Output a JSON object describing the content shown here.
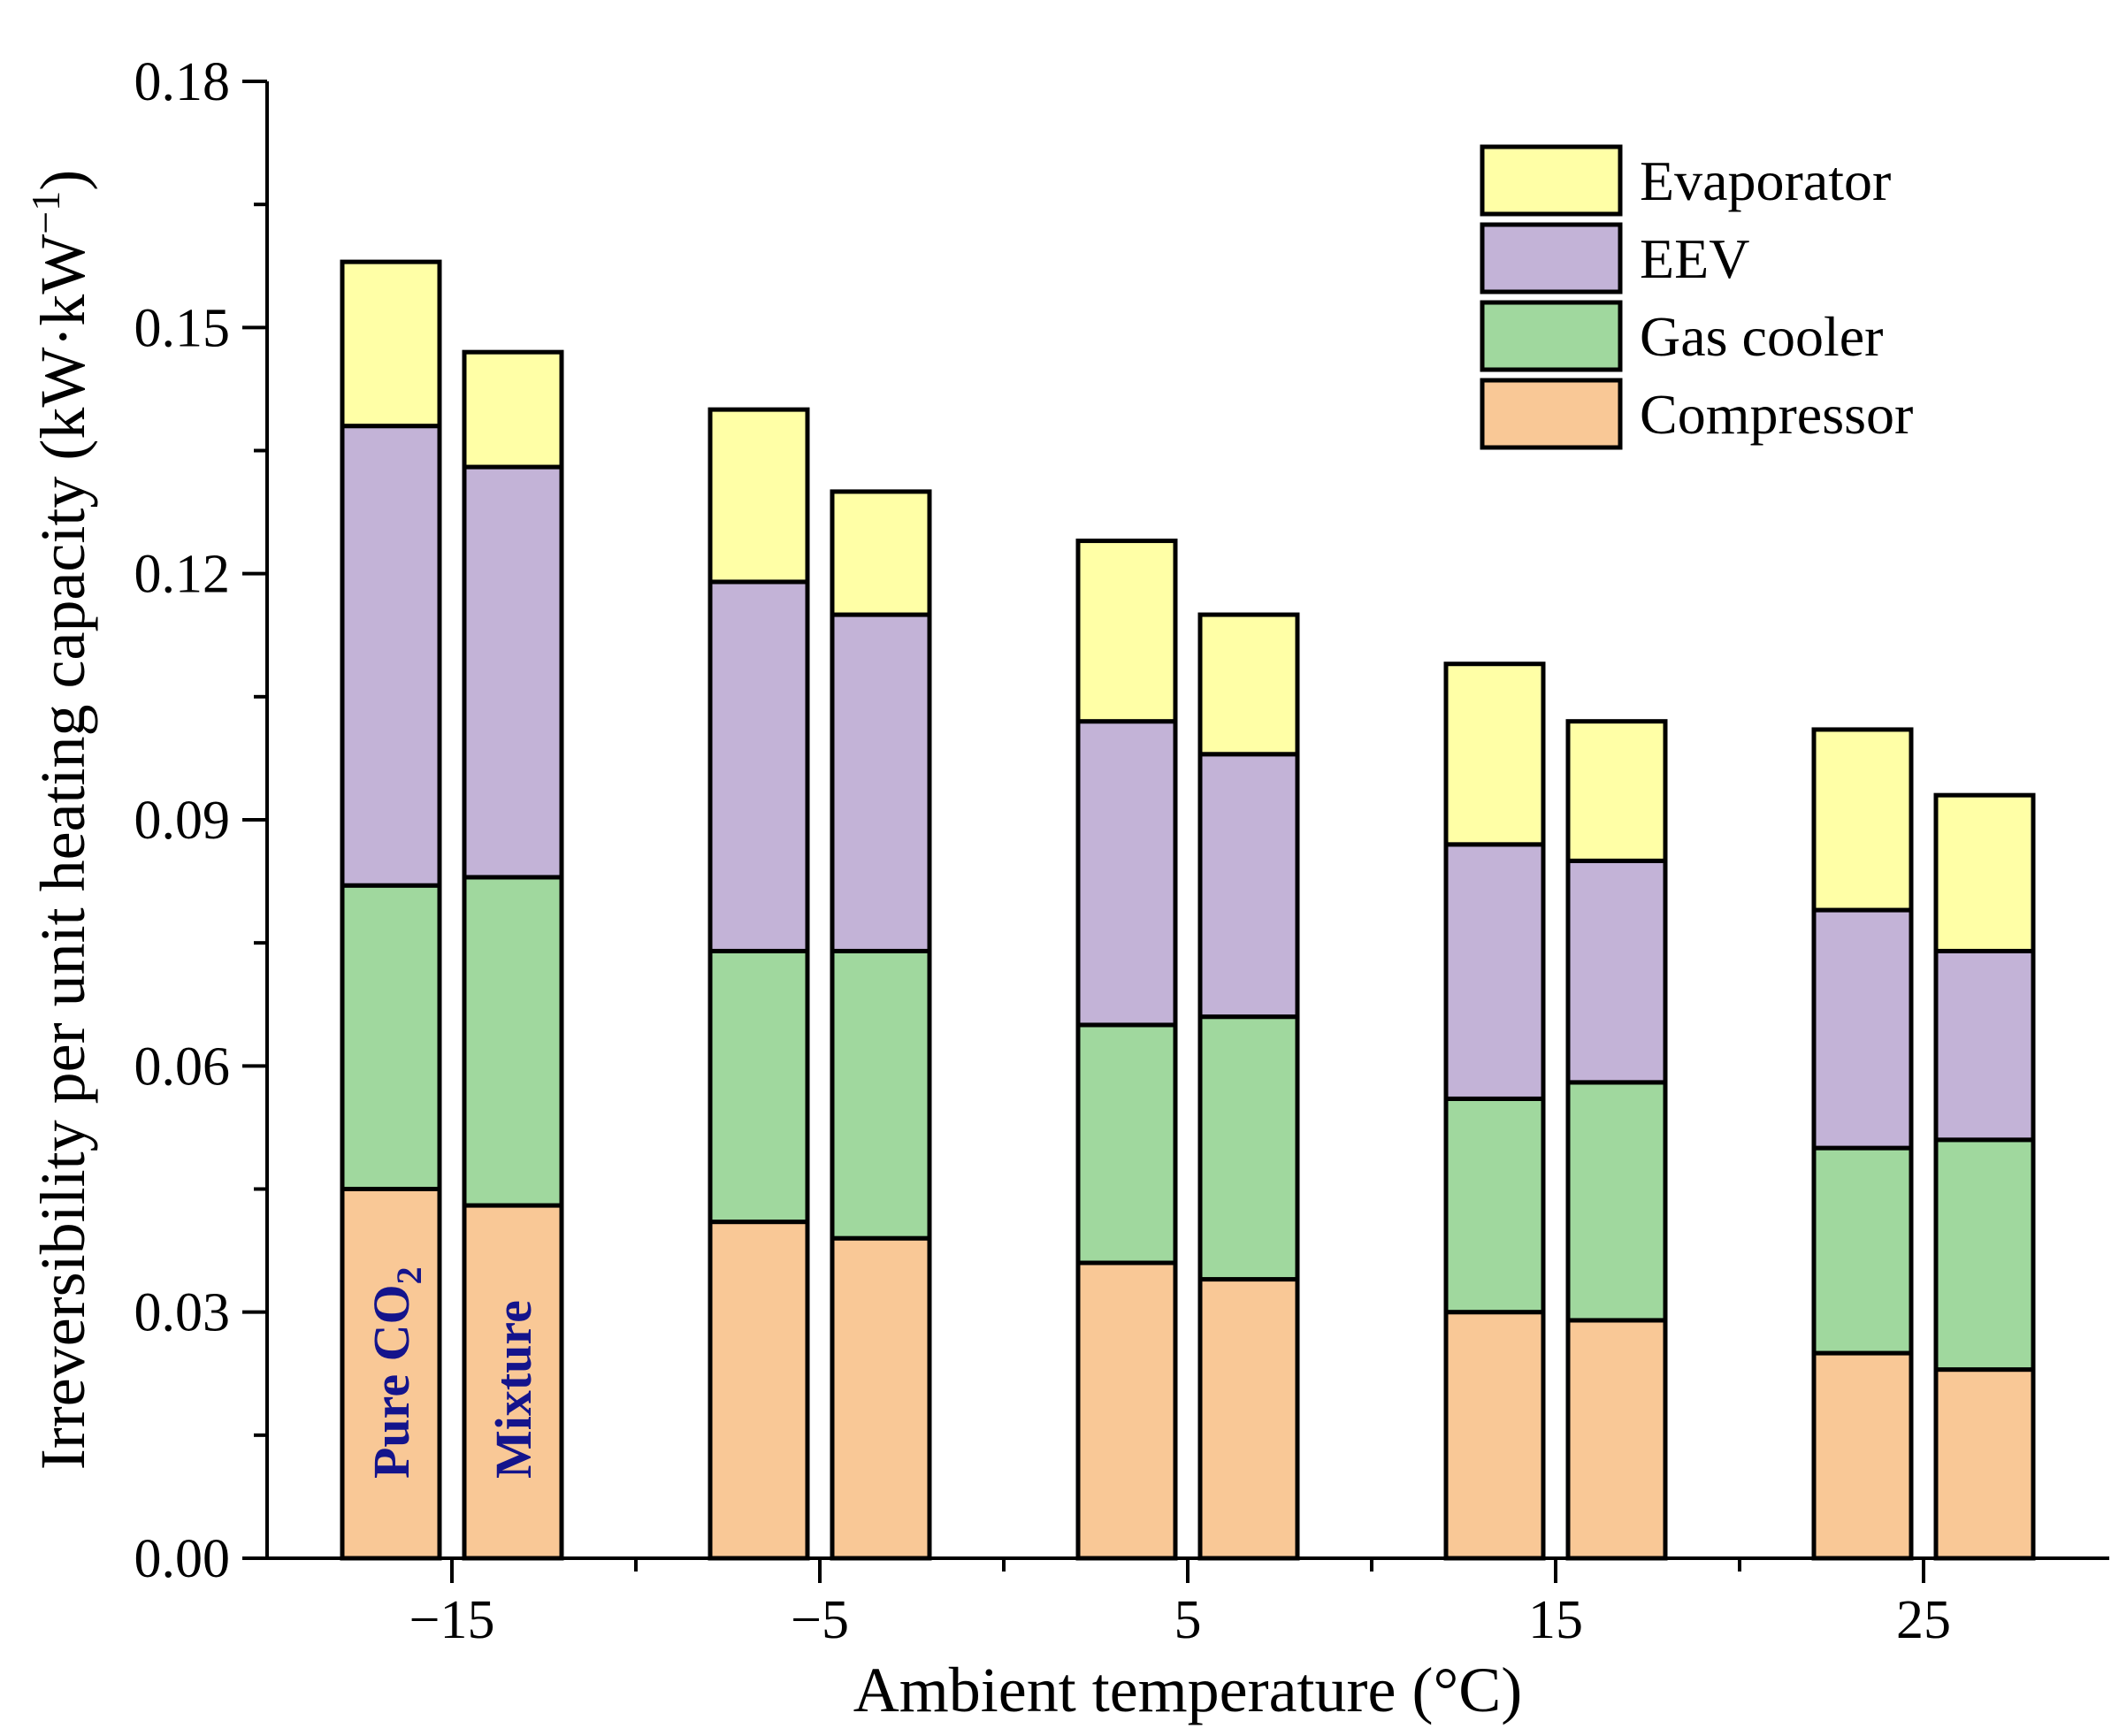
{
  "chart_data": {
    "type": "bar",
    "stacked": true,
    "xlabel": "Ambient temperature (°C)",
    "ylabel": "Irreversibility per unit heating capacity (kW·kW",
    "ylabel_superscript": "−1",
    "ylabel_close": ")",
    "ylim": [
      0,
      0.18
    ],
    "yticks": [
      "0.00",
      "0.03",
      "0.06",
      "0.09",
      "0.12",
      "0.15",
      "0.18"
    ],
    "categories": [
      "−15",
      "−5",
      "5",
      "15",
      "25"
    ],
    "bars_per_category": [
      "Pure CO2",
      "Mixture"
    ],
    "bar_annotations": [
      {
        "text": "Pure CO",
        "subscript": "2"
      },
      {
        "text": "Mixture",
        "subscript": ""
      }
    ],
    "series": [
      {
        "name": "Compressor",
        "color": "#f9c896",
        "values": [
          [
            0.045,
            0.043
          ],
          [
            0.041,
            0.039
          ],
          [
            0.036,
            0.034
          ],
          [
            0.03,
            0.029
          ],
          [
            0.025,
            0.023
          ]
        ]
      },
      {
        "name": "Gas cooler",
        "color": "#a0d89e",
        "values": [
          [
            0.037,
            0.04
          ],
          [
            0.033,
            0.035
          ],
          [
            0.029,
            0.032
          ],
          [
            0.026,
            0.029
          ],
          [
            0.025,
            0.028
          ]
        ]
      },
      {
        "name": "EEV",
        "color": "#c3b3d7",
        "values": [
          [
            0.056,
            0.05
          ],
          [
            0.045,
            0.041
          ],
          [
            0.037,
            0.032
          ],
          [
            0.031,
            0.027
          ],
          [
            0.029,
            0.023
          ]
        ]
      },
      {
        "name": "Evaporator",
        "color": "#ffffa6",
        "values": [
          [
            0.02,
            0.014
          ],
          [
            0.021,
            0.015
          ],
          [
            0.022,
            0.017
          ],
          [
            0.022,
            0.017
          ],
          [
            0.022,
            0.019
          ]
        ]
      }
    ],
    "legend_order": [
      "Evaporator",
      "EEV",
      "Gas cooler",
      "Compressor"
    ],
    "legend_position": "top-right",
    "grid": false
  }
}
